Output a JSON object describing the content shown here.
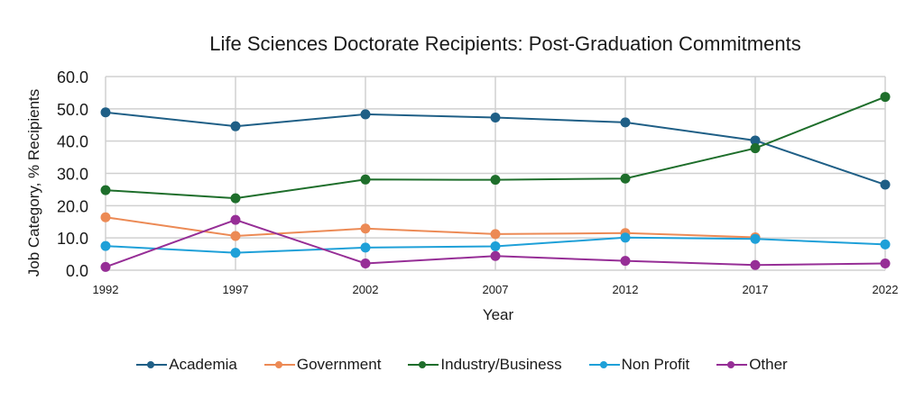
{
  "chart_data": {
    "type": "line",
    "title": "Life Sciences Doctorate Recipients: Post-Graduation Commitments",
    "xlabel": "Year",
    "ylabel": "Job Category, % Recipients",
    "ylim": [
      0,
      60
    ],
    "yticks": [
      "0.0",
      "10.0",
      "20.0",
      "30.0",
      "40.0",
      "50.0",
      "60.0"
    ],
    "grid": true,
    "legend_position": "bottom",
    "x": [
      "1992",
      "1997",
      "2002",
      "2007",
      "2012",
      "2017",
      "2022"
    ],
    "series": [
      {
        "name": "Academia",
        "color": "#1f5f86",
        "values": [
          48.9,
          44.6,
          48.3,
          47.3,
          45.8,
          40.2,
          26.5
        ]
      },
      {
        "name": "Government",
        "color": "#ec8a55",
        "values": [
          16.4,
          10.6,
          12.9,
          11.2,
          11.5,
          10.2,
          null
        ]
      },
      {
        "name": "Industry/Business",
        "color": "#1e6e2b",
        "values": [
          24.8,
          22.3,
          28.1,
          28.0,
          28.4,
          37.8,
          53.7
        ]
      },
      {
        "name": "Non Profit",
        "color": "#1ea0d8",
        "values": [
          7.5,
          5.4,
          7.0,
          7.4,
          10.1,
          9.7,
          8.0
        ]
      },
      {
        "name": "Other",
        "color": "#962e96",
        "values": [
          1.0,
          15.6,
          2.1,
          4.4,
          2.9,
          1.6,
          2.1
        ]
      }
    ]
  }
}
